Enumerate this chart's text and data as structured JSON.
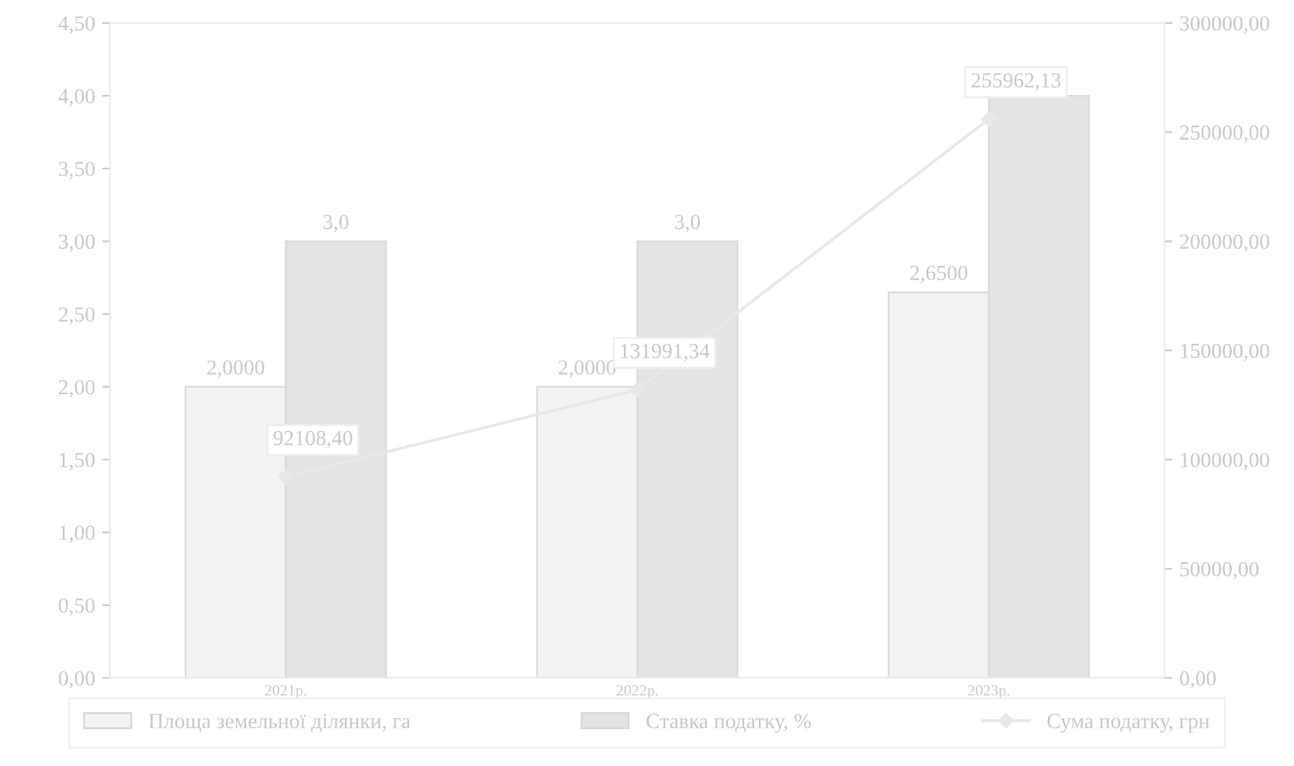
{
  "chart_data": {
    "type": "bar",
    "categories": [
      "2021р.",
      "2022р.",
      "2023р."
    ],
    "series": [
      {
        "name": "Площа земельної ділянки, га",
        "color": "#f3f3f3",
        "values": [
          2.0,
          2.0,
          2.65
        ],
        "value_labels": [
          "2,0000",
          "2,0000",
          "2,6500"
        ]
      },
      {
        "name": "Ставка податку, %",
        "color": "#e4e4e4",
        "values": [
          3.0,
          3.0,
          4.0
        ],
        "value_labels": [
          "3,0",
          "3,0",
          null
        ]
      },
      {
        "name": "Сума податку, грн",
        "type": "line",
        "axis": "y2",
        "color": "#e8e8e8",
        "marker": "diamond",
        "values": [
          92108.4,
          131991.34,
          255962.13
        ],
        "value_labels": [
          "92108,40",
          "131991,34",
          "255962,13"
        ]
      }
    ],
    "ylim": [
      0,
      4.5
    ],
    "yticks": [
      {
        "value": 0,
        "label": "0,00"
      },
      {
        "value": 0.5,
        "label": "0,50"
      },
      {
        "value": 1,
        "label": "1,00"
      },
      {
        "value": 1.5,
        "label": "1,50"
      },
      {
        "value": 2,
        "label": "2,00"
      },
      {
        "value": 2.5,
        "label": "2,50"
      },
      {
        "value": 3,
        "label": "3,00"
      },
      {
        "value": 3.5,
        "label": "3,50"
      },
      {
        "value": 4,
        "label": "4,00"
      },
      {
        "value": 4.5,
        "label": "4,50"
      }
    ],
    "y2lim": [
      0,
      300000
    ],
    "y2ticks": [
      {
        "value": 0,
        "label": "0,00"
      },
      {
        "value": 50000,
        "label": "50000,00"
      },
      {
        "value": 100000,
        "label": "100000,00"
      },
      {
        "value": 150000,
        "label": "150000,00"
      },
      {
        "value": 200000,
        "label": "200000,00"
      },
      {
        "value": 250000,
        "label": "250000,00"
      },
      {
        "value": 300000,
        "label": "300000,00"
      }
    ],
    "grid": false,
    "legend": "bottom"
  }
}
